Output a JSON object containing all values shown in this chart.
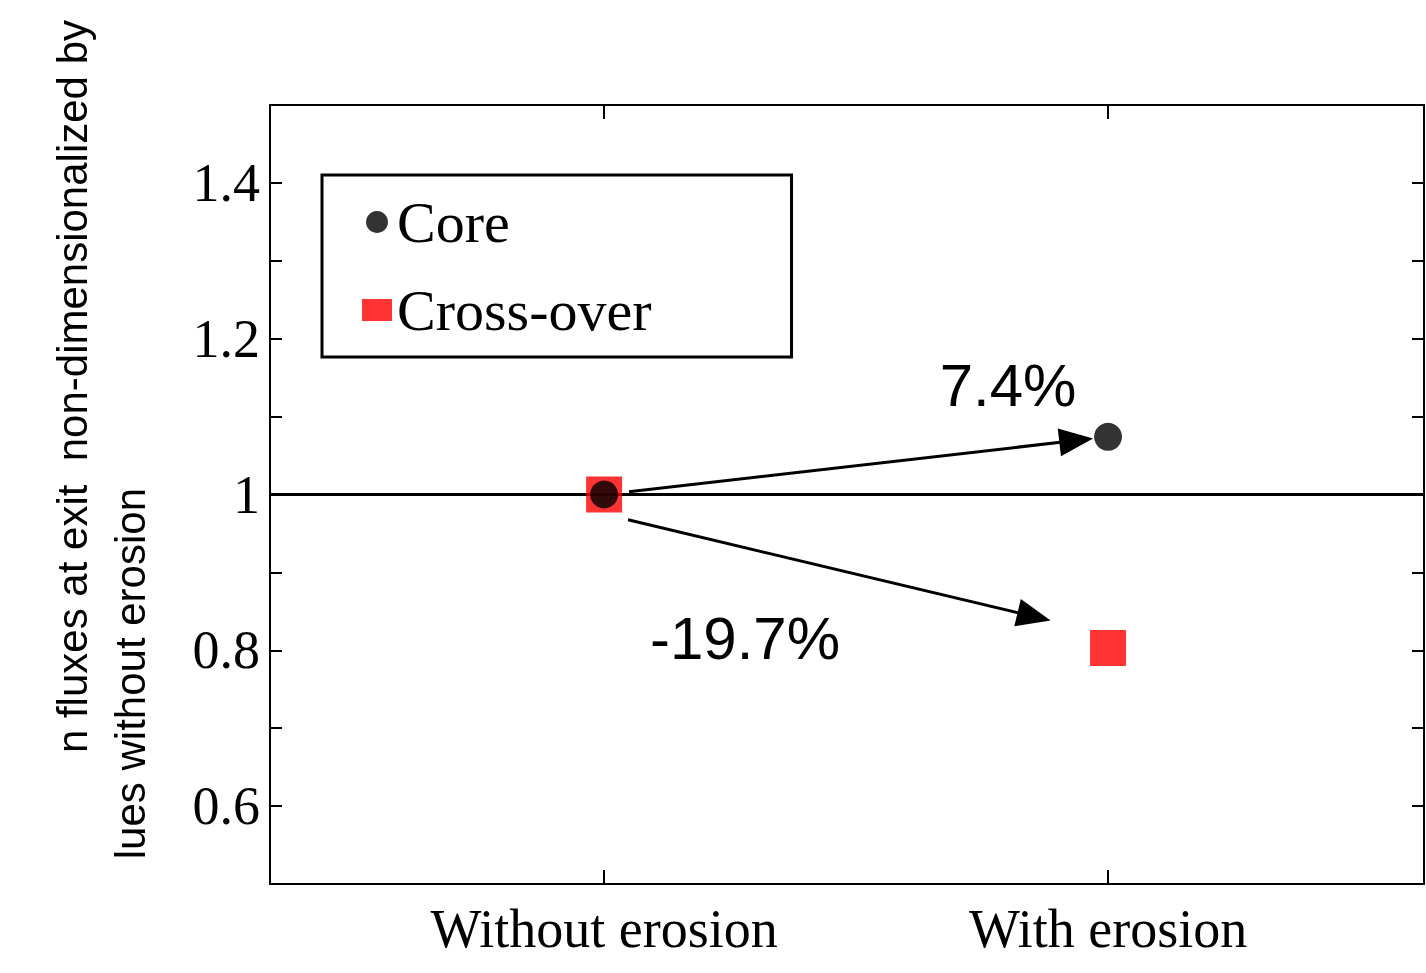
{
  "chart_data": {
    "type": "scatter",
    "ylabel": "n fluxes at exit  non-dimensionalized by\nlues without erosion",
    "categories": [
      "Without erosion",
      "With erosion"
    ],
    "series": [
      {
        "name": "Core",
        "color": "#000000",
        "marker": "circle",
        "values": [
          1,
          1.074
        ]
      },
      {
        "name": "Cross-over",
        "color": "#ff0000",
        "marker": "square",
        "values": [
          1,
          0.803
        ]
      }
    ],
    "ylim": [
      0.5,
      1.5
    ],
    "yticks": [
      0.6,
      {
        "value": 0.7,
        "label": null
      },
      0.8,
      {
        "value": 0.9,
        "label": null
      },
      1,
      {
        "value": 1.1,
        "label": null
      },
      1.2,
      {
        "value": 1.3,
        "label": null
      },
      1.4
    ],
    "ref_lines": [
      {
        "axis": "y",
        "value": 1,
        "color": "#000000"
      }
    ],
    "annotations": [
      {
        "text": "7.4%",
        "x": "With erosion",
        "y": 1.074
      },
      "-19.7%"
    ],
    "legend": "top left",
    "grid": false
  }
}
